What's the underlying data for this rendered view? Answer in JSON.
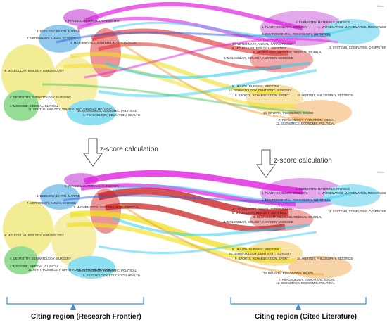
{
  "top_panel": {
    "badge": "Words",
    "left_labels": [
      "5. PHYSICS, MATERIALS, CHEMISTRY",
      "3. ECOLOGY, EARTH, MARINE",
      "7. VETERINARY, ANIMAL SCIENCE",
      "1. MATHEMATICS, SYSTEMS, MATHEMATICAL",
      "4. MOLECULAR, BIOLOGY, IMMUNOLOGY",
      "9. DENTISTRY, DERMATOLOGY, SURGERY",
      "2. MEDICINE, MEDICAL, CLINICAL",
      "11. OPHTHALMOLOGY, OPHTHALMIC, OPHTHALMOLOGICA",
      "10. ECONOMICS, ECONOMIC, POLITICAL",
      "6. PSYCHOLOGY, EDUCATION, HEALTH"
    ],
    "right_labels": [
      "4. CHEMISTRY, MATERIALS, PHYSICS",
      "1. PLANT, ECOLOGY, ZOOLOGY",
      "1. MATHEMATICS, MATHEMATICS, MECHANICS",
      "2. ENVIRONMENTAL, TOXICOLOGY, NUTRITION",
      "10. VETERINARY, ANIMAL, PARASITOLOGY",
      "5. MOLECULAR, BIOLOGY, GENETICS",
      "6. NEUROLOGY, MEDICINE, MEDICAL JOURNAL",
      "3. SYSTEMS, COMPUTING, COMPUTER",
      "8. MOLECULAR, BIOLOGY, ANATOMY, MEDICINE",
      "5. HEALTH, NURSING, MEDICINE",
      "14. DERMATOLOGY, DENTISTRY, SURGERY",
      "9. SPORTS, REHABILITATION, SPORT",
      "18. HISTORY, PHILOSOPHY, RECORDS",
      "13. REVISTA, PSICOLOGIA, SAUDE",
      "7. PSYCHOLOGY, EDUCATION, SOCIAL",
      "12. ECONOMICS, ECONOMIC, POLITICAL"
    ]
  },
  "bottom_panel": {
    "badge": "Words",
    "left_labels": [
      "5. PHYSICS, MATERIALS, CHEMISTRY",
      "3. ECOLOGY, EARTH, MARINE",
      "7. VETERINARY, ANIMAL SCIENCE",
      "1. MATHEMATICS, SYSTEMS, MATHEMATICAL",
      "4. MOLECULAR, BIOLOGY, IMMUNOLOGY",
      "9. DENTISTRY, DERMATOLOGY, SURGERY",
      "2. MEDICINE, MEDICAL, CLINICAL",
      "11. OPHTHALMOLOGY, OPHTHALMIC, OPHTHALMOLOGICA",
      "10. ECONOMICS, ECONOMIC, POLITICAL",
      "6. PSYCHOLOGY, EDUCATION, HEALTH"
    ],
    "right_labels": [
      "4. CHEMISTRY, MATERIALS, PHYSICS",
      "1. PLANT, ECOLOGY, ZOOLOGY",
      "1. MATHEMATICS, MATHEMATICS, MECHANICS",
      "2. ENVIRONMENTAL, TOXICOLOGY, NUTRITION",
      "10. VETERINARY, ANIMAL, PARASITOLOGY",
      "5. MOLECULAR, BIOLOGY, GENETICS",
      "6. NEUROLOGY, MEDICINE, MEDICAL JOURNAL",
      "3. SYSTEMS, COMPUTING, COMPUTER",
      "8. MOLECULAR, BIOLOGY, ANATOMY, MEDICINE",
      "5. HEALTH, NURSING, MEDICINE",
      "14. DERMATOLOGY, DENTISTRY, SURGERY",
      "9. SPORTS, REHABILITATION, SPORT",
      "18. HISTORY, PHILOSOPHY, RECORDS",
      "13. REVISTA, PSICOLOGIA, SAUDE",
      "7. PSYCHOLOGY, EDUCATION, SOCIAL",
      "12. ECONOMICS, ECONOMIC, POLITICAL"
    ]
  },
  "annotations": {
    "zscore_left": "z-score calculation",
    "zscore_right": "z-score calculation"
  },
  "regions": {
    "citing_region": "Citing region (Research Frontier)",
    "cited_region": "Citing region (Cited Literature)"
  },
  "colors": {
    "magenta": "#e020e0",
    "red": "#e02828",
    "yellow": "#f0e020",
    "cyan": "#30d0f0",
    "green": "#40c040",
    "blue": "#3060e0",
    "bracket": "#3a8fd8"
  }
}
